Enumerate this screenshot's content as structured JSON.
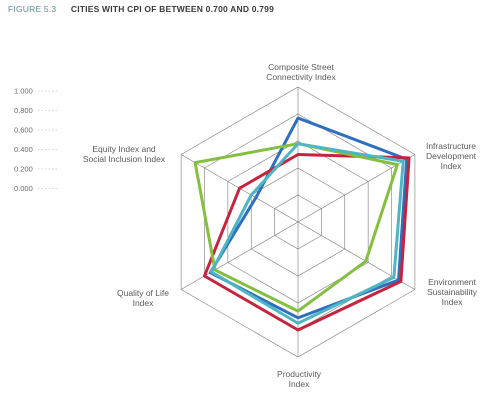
{
  "figure": {
    "label": "FIGURE 5.3",
    "title": "CITIES WITH CPI OF BETWEEN 0.700 AND 0.799"
  },
  "chart_data": {
    "type": "radar",
    "categories": [
      [
        "Composite Street",
        "Connectivity Index"
      ],
      [
        "Infrastructure",
        "Development",
        "Index"
      ],
      [
        "Environment",
        "Sustainability",
        "Index"
      ],
      [
        "Productivity",
        "Index"
      ],
      [
        "Quality of Life",
        "Index"
      ],
      [
        "Equity Index and",
        "Social Inclusion Index"
      ]
    ],
    "tick_labels": [
      "0.000",
      "0.200",
      "0.400",
      "0.600",
      "0.800",
      "1.000"
    ],
    "rlim": [
      0,
      1
    ],
    "grid": true,
    "series": [
      {
        "color": "#2f6fc0",
        "values": [
          0.77,
          0.93,
          0.86,
          0.71,
          0.75,
          0.36
        ]
      },
      {
        "color": "#c6233e",
        "values": [
          0.5,
          0.95,
          0.88,
          0.8,
          0.8,
          0.5
        ]
      },
      {
        "color": "#84bf3f",
        "values": [
          0.58,
          0.85,
          0.58,
          0.66,
          0.71,
          0.88
        ]
      },
      {
        "color": "#4fb5c4",
        "values": [
          0.58,
          0.9,
          0.82,
          0.75,
          0.74,
          0.4
        ]
      }
    ]
  }
}
